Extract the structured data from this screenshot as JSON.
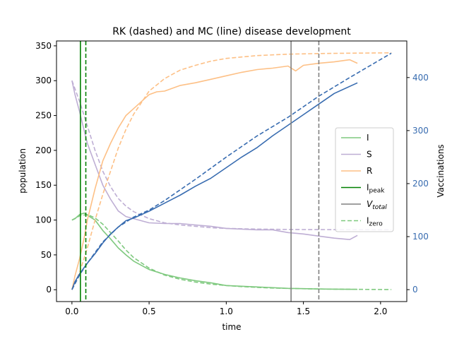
{
  "chart_data": {
    "type": "line",
    "title": "RK (dashed) and MC (line) disease development",
    "xlabel": "time",
    "ylabel": "population",
    "y2label": "Vaccinations",
    "xlim": [
      -0.1,
      2.17
    ],
    "ylim": [
      -17,
      357
    ],
    "y2lim": [
      -22.5,
      469
    ],
    "xticks": [
      0.0,
      0.5,
      1.0,
      1.5,
      2.0
    ],
    "xtick_labels": [
      "0.0",
      "0.5",
      "1.0",
      "1.5",
      "2.0"
    ],
    "yticks": [
      0,
      50,
      100,
      150,
      200,
      250,
      300,
      350
    ],
    "y2ticks": [
      0,
      100,
      200,
      300,
      400
    ],
    "colors": {
      "I": "#7fc97f",
      "S": "#beaed4",
      "R": "#fdc086",
      "V": "#386cb0",
      "peak": "#008000",
      "total": "#808080",
      "axis2": "#386cb0"
    },
    "legend": {
      "placement": "center-right",
      "entries": [
        {
          "key": "I",
          "label": "I",
          "style": "solid"
        },
        {
          "key": "S",
          "label": "S",
          "style": "solid"
        },
        {
          "key": "R",
          "label": "R",
          "style": "solid"
        },
        {
          "key": "peak",
          "label_main": "I",
          "label_sub": "peak",
          "style": "solid"
        },
        {
          "key": "total",
          "label_main": "V",
          "label_sub": "total",
          "style": "solid",
          "italic": true
        },
        {
          "key": "I",
          "label_main": "I",
          "label_sub": "zero",
          "style": "dashed"
        }
      ]
    },
    "vlines": [
      {
        "key": "peak",
        "x": 0.055,
        "style": "solid"
      },
      {
        "key": "peak",
        "x": 0.09,
        "style": "dashed"
      },
      {
        "key": "total",
        "x": 1.42,
        "style": "solid"
      },
      {
        "key": "total",
        "x": 1.6,
        "style": "dashed"
      }
    ],
    "series": [
      {
        "key": "I",
        "method": "MC",
        "axis": "left",
        "style": "solid",
        "x": [
          0,
          0.02,
          0.05,
          0.08,
          0.1,
          0.15,
          0.2,
          0.25,
          0.3,
          0.35,
          0.4,
          0.5,
          0.6,
          0.7,
          0.8,
          0.9,
          1.0,
          1.1,
          1.2,
          1.3,
          1.4,
          1.5,
          1.6,
          1.7,
          1.85
        ],
        "y": [
          100,
          102,
          108,
          110,
          107,
          100,
          85,
          73,
          60,
          50,
          41,
          29,
          22,
          17,
          13,
          10,
          6,
          5,
          4,
          3,
          2,
          1.5,
          1,
          0.8,
          0.5
        ]
      },
      {
        "key": "I",
        "method": "RK",
        "axis": "left",
        "style": "dashed",
        "x": [
          0,
          0.05,
          0.1,
          0.15,
          0.2,
          0.25,
          0.3,
          0.35,
          0.4,
          0.5,
          0.6,
          0.7,
          0.8,
          0.9,
          1.0,
          1.1,
          1.2,
          1.3,
          1.4,
          1.5,
          1.6,
          1.8,
          2.07
        ],
        "y": [
          100,
          106,
          108,
          103,
          94,
          82,
          70,
          57,
          46,
          31,
          21,
          15,
          11,
          8,
          6,
          4.5,
          3.4,
          2.5,
          1.9,
          1.4,
          1.0,
          0.6,
          0.2
        ]
      },
      {
        "key": "S",
        "method": "MC",
        "axis": "left",
        "style": "solid",
        "x": [
          0,
          0.02,
          0.05,
          0.08,
          0.1,
          0.15,
          0.2,
          0.25,
          0.3,
          0.35,
          0.4,
          0.5,
          0.6,
          0.7,
          0.8,
          0.9,
          1.0,
          1.1,
          1.2,
          1.3,
          1.4,
          1.5,
          1.6,
          1.7,
          1.8,
          1.85
        ],
        "y": [
          300,
          280,
          255,
          228,
          210,
          180,
          150,
          130,
          113,
          105,
          102,
          96,
          95,
          95,
          93,
          91,
          88,
          87,
          86,
          86,
          82,
          80,
          77,
          74,
          72,
          78
        ]
      },
      {
        "key": "S",
        "method": "RK",
        "axis": "left",
        "style": "dashed",
        "x": [
          0,
          0.05,
          0.1,
          0.15,
          0.2,
          0.25,
          0.3,
          0.35,
          0.4,
          0.5,
          0.6,
          0.7,
          0.8,
          0.9,
          1.0,
          1.2,
          1.4,
          1.6,
          1.8,
          2.07
        ],
        "y": [
          300,
          270,
          235,
          200,
          170,
          148,
          131,
          120,
          112,
          102,
          96,
          93,
          91,
          89,
          88,
          87,
          86.5,
          86.3,
          86.2,
          86.1
        ]
      },
      {
        "key": "R",
        "method": "MC",
        "axis": "left",
        "style": "solid",
        "x": [
          0,
          0.02,
          0.05,
          0.08,
          0.1,
          0.15,
          0.2,
          0.25,
          0.3,
          0.35,
          0.4,
          0.45,
          0.5,
          0.55,
          0.6,
          0.7,
          0.8,
          0.9,
          1.0,
          1.1,
          1.2,
          1.3,
          1.4,
          1.45,
          1.5,
          1.6,
          1.7,
          1.8,
          1.85
        ],
        "y": [
          0,
          20,
          45,
          75,
          100,
          145,
          185,
          210,
          232,
          250,
          260,
          270,
          280,
          284,
          285,
          293,
          297,
          302,
          307,
          312,
          316,
          318,
          321,
          314,
          322,
          325,
          327,
          330,
          325
        ]
      },
      {
        "key": "R",
        "method": "RK",
        "axis": "left",
        "style": "dashed",
        "x": [
          0,
          0.05,
          0.1,
          0.15,
          0.2,
          0.25,
          0.3,
          0.35,
          0.4,
          0.5,
          0.6,
          0.7,
          0.8,
          0.9,
          1.0,
          1.2,
          1.4,
          1.6,
          1.8,
          2.07
        ],
        "y": [
          0,
          25,
          60,
          100,
          137,
          170,
          203,
          230,
          252,
          285,
          303,
          315,
          322,
          328,
          332,
          336,
          338,
          339,
          339.5,
          340
        ]
      },
      {
        "key": "V",
        "method": "MC",
        "axis": "right",
        "style": "solid",
        "x": [
          0,
          0.02,
          0.05,
          0.1,
          0.15,
          0.2,
          0.25,
          0.3,
          0.35,
          0.4,
          0.5,
          0.6,
          0.7,
          0.8,
          0.9,
          1.0,
          1.1,
          1.2,
          1.3,
          1.4,
          1.5,
          1.6,
          1.7,
          1.85
        ],
        "y": [
          0,
          15,
          30,
          50,
          68,
          88,
          105,
          118,
          130,
          135,
          148,
          163,
          178,
          195,
          210,
          230,
          250,
          268,
          290,
          310,
          330,
          350,
          370,
          390
        ]
      },
      {
        "key": "V",
        "method": "RK",
        "axis": "right",
        "style": "dashed",
        "x": [
          0,
          0.05,
          0.1,
          0.2,
          0.3,
          0.4,
          0.5,
          0.6,
          0.8,
          1.0,
          1.2,
          1.4,
          1.6,
          1.8,
          2.07
        ],
        "y": [
          0,
          28,
          50,
          90,
          118,
          137,
          150,
          168,
          208,
          250,
          290,
          325,
          365,
          400,
          446
        ]
      }
    ]
  }
}
